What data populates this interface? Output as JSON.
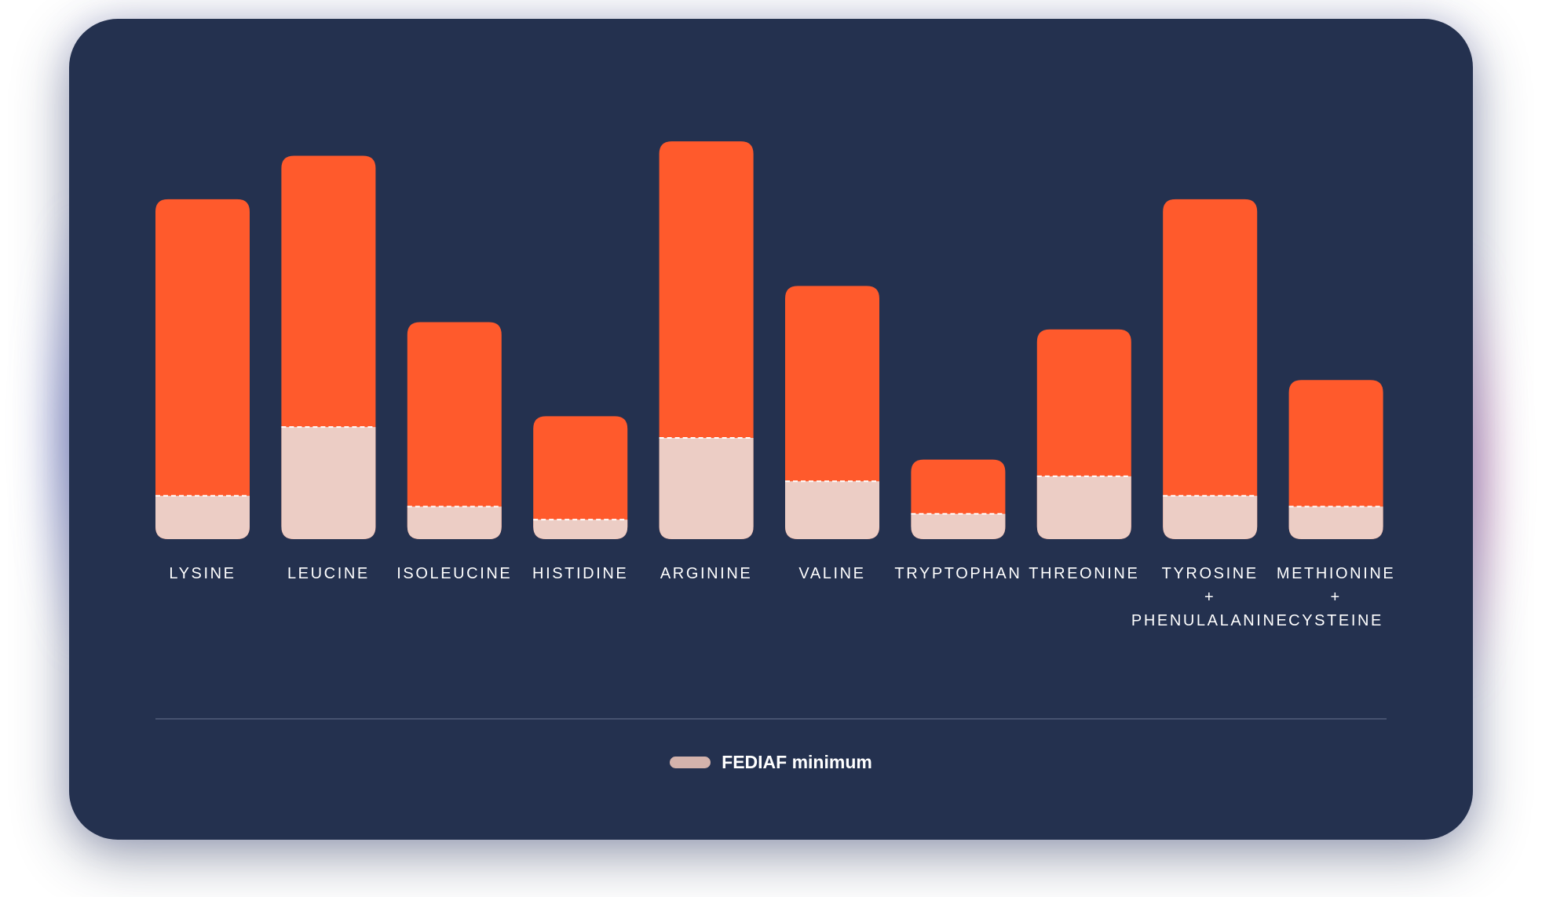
{
  "chart_data": {
    "type": "bar",
    "categories": [
      [
        "LYSINE"
      ],
      [
        "LEUCINE"
      ],
      [
        "ISOLEUCINE"
      ],
      [
        "HISTIDINE"
      ],
      [
        "ARGININE"
      ],
      [
        "VALINE"
      ],
      [
        "TRYPTOPHAN"
      ],
      [
        "THREONINE"
      ],
      [
        "TYROSINE",
        "+",
        "PHENULALANINE"
      ],
      [
        "METHIONINE",
        "+",
        "CYSTEINE"
      ]
    ],
    "series": [
      {
        "values": [
          470,
          530,
          300,
          170,
          550,
          350,
          110,
          290,
          470,
          220
        ]
      },
      {
        "name": "FEDIAF minimum",
        "values": [
          60,
          155,
          45,
          27,
          140,
          80,
          35,
          87,
          60,
          45
        ]
      }
    ],
    "ylim": [
      0,
      600
    ],
    "grid": false,
    "legend_placement": "bottom-center",
    "colors": {
      "value_bar": "#ff5a2c",
      "minimum_bar": "#eccdc5",
      "minimum_line": "#ffffff",
      "background": "#24314f",
      "legend_swatch": "#d4b3ac"
    }
  },
  "legend": {
    "label": "FEDIAF minimum"
  }
}
